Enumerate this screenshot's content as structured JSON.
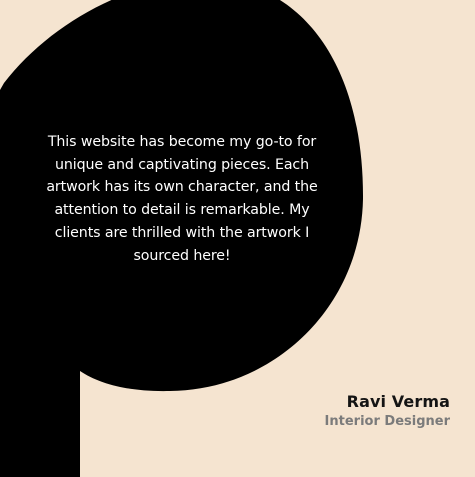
{
  "testimonial": {
    "quote": "This website has become my go-to for unique and captivating pieces. Each artwork has its own character, and the attention to detail is remarkable. My clients are thrilled with the artwork I sourced here!",
    "author_name": "Ravi Verma",
    "author_title": "Interior Designer"
  },
  "colors": {
    "background": "#f5e4d0",
    "bubble": "#000000",
    "quote_text": "#ffffff",
    "author_name": "#141414",
    "author_title": "#7b7b7b"
  }
}
